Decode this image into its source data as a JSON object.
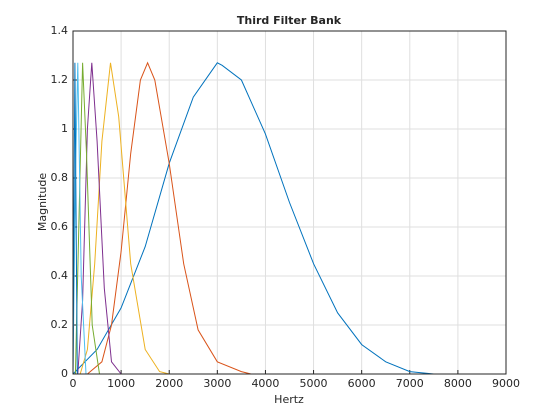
{
  "chart_data": {
    "type": "line",
    "title": "Third Filter Bank",
    "xlabel": "Hertz",
    "ylabel": "Magnitude",
    "xlim": [
      0,
      9000
    ],
    "xticks": [
      0,
      1000,
      2000,
      3000,
      4000,
      5000,
      6000,
      7000,
      8000,
      9000
    ],
    "ylim": [
      0,
      1.4
    ],
    "yticks": [
      0,
      0.2,
      0.4,
      0.6,
      0.8,
      1,
      1.2,
      1.4
    ],
    "grid": true,
    "series": [
      {
        "color": "#0072bd",
        "x": [
          0,
          500,
          1000,
          1500,
          2000,
          2500,
          3000,
          3100,
          3500,
          4000,
          4500,
          5000,
          5500,
          6000,
          6500,
          7000,
          7500
        ],
        "values": [
          0,
          0.1,
          0.27,
          0.52,
          0.86,
          1.13,
          1.27,
          1.26,
          1.2,
          0.98,
          0.7,
          0.45,
          0.25,
          0.12,
          0.05,
          0.01,
          0
        ]
      },
      {
        "color": "#d95319",
        "x": [
          300,
          600,
          800,
          1000,
          1200,
          1400,
          1550,
          1700,
          2000,
          2300,
          2600,
          3000,
          3500,
          3700
        ],
        "values": [
          0,
          0.05,
          0.2,
          0.5,
          0.9,
          1.2,
          1.27,
          1.2,
          0.86,
          0.45,
          0.18,
          0.05,
          0.01,
          0
        ]
      },
      {
        "color": "#edb120",
        "x": [
          150,
          300,
          450,
          600,
          780,
          950,
          1200,
          1500,
          1800,
          2000
        ],
        "values": [
          0,
          0.1,
          0.45,
          0.95,
          1.27,
          1.05,
          0.45,
          0.1,
          0.01,
          0
        ]
      },
      {
        "color": "#7e2f8e",
        "x": [
          100,
          200,
          300,
          390,
          500,
          650,
          800,
          1000
        ],
        "values": [
          0,
          0.3,
          1.0,
          1.27,
          0.95,
          0.35,
          0.05,
          0
        ]
      },
      {
        "color": "#77ac30",
        "x": [
          50,
          120,
          200,
          280,
          400,
          550
        ],
        "values": [
          0,
          0.6,
          1.27,
          0.9,
          0.2,
          0
        ]
      },
      {
        "color": "#4dbeee",
        "x": [
          0,
          50,
          100,
          170,
          270,
          7200
        ],
        "values": [
          0,
          0.8,
          1.27,
          0.4,
          0,
          0
        ]
      },
      {
        "color": "#0072bd",
        "x": [
          0,
          40,
          90
        ],
        "values": [
          0,
          1.27,
          0
        ]
      }
    ]
  }
}
